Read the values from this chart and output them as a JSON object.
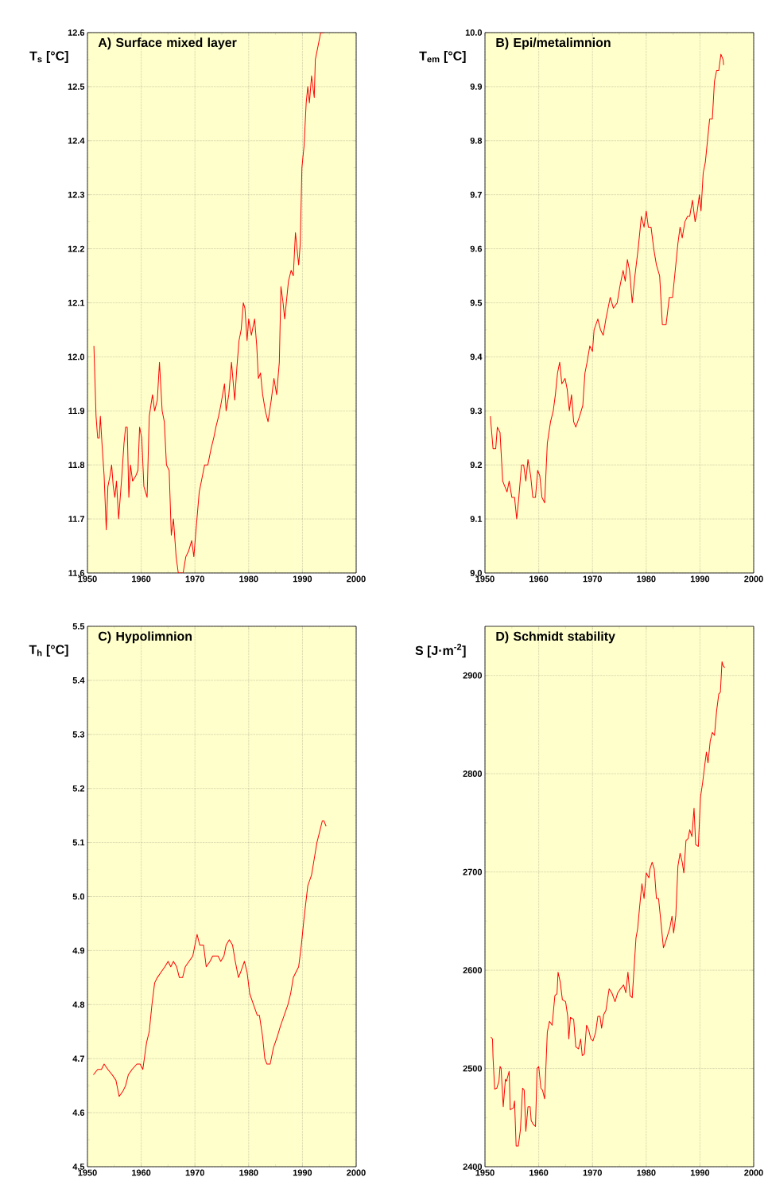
{
  "chart_data": [
    {
      "type": "line",
      "title": "A) Surface mixed layer",
      "ylabel": "T$_{s}$ [°C]",
      "grid": true,
      "xlim": [
        1950,
        2000
      ],
      "ylim": [
        11.6,
        12.6
      ],
      "xticks": [
        1950,
        1960,
        1970,
        1980,
        1990,
        2000
      ],
      "yticks": [
        11.6,
        11.7,
        11.8,
        11.9,
        {
          "value": 12.0,
          "label": "12.0"
        },
        12.1,
        12.2,
        12.3,
        12.4,
        12.5,
        12.6
      ],
      "x": [
        1951.2,
        1951.6,
        1951.9,
        1952.2,
        1952.4,
        1952.7,
        1953.1,
        1953.5,
        1953.8,
        1954.2,
        1954.5,
        1954.8,
        1955.1,
        1955.4,
        1955.8,
        1956.4,
        1956.8,
        1957.1,
        1957.4,
        1957.7,
        1958.0,
        1958.4,
        1959.0,
        1959.4,
        1959.7,
        1960.1,
        1960.5,
        1961.1,
        1961.5,
        1962.1,
        1962.5,
        1963.0,
        1963.4,
        1963.9,
        1964.3,
        1964.7,
        1965.2,
        1965.6,
        1966.0,
        1966.5,
        1966.9,
        1967.3,
        1967.8,
        1968.3,
        1968.8,
        1969.4,
        1969.8,
        1970.2,
        1970.8,
        1971.4,
        1971.8,
        1972.4,
        1973.0,
        1973.5,
        1973.9,
        1974.4,
        1974.8,
        1975.5,
        1975.8,
        1976.3,
        1976.8,
        1977.4,
        1977.8,
        1978.2,
        1978.6,
        1979.0,
        1979.3,
        1979.7,
        1980.0,
        1980.5,
        1981.1,
        1981.5,
        1981.8,
        1982.2,
        1982.6,
        1983.1,
        1983.6,
        1984.2,
        1984.7,
        1985.2,
        1985.7,
        1986.0,
        1986.4,
        1986.7,
        1987.4,
        1987.9,
        1988.3,
        1988.7,
        1989.3,
        1989.6,
        1989.9,
        1990.3,
        1990.7,
        1991.0,
        1991.3,
        1991.7,
        1992.2,
        1992.4,
        1993.0,
        1993.4,
        1994.0
      ],
      "series": [
        {
          "color": "#ff0000",
          "values": [
            12.02,
            11.89,
            11.85,
            11.85,
            11.89,
            11.84,
            11.78,
            11.68,
            11.76,
            11.78,
            11.8,
            11.76,
            11.74,
            11.77,
            11.7,
            11.78,
            11.84,
            11.87,
            11.87,
            11.74,
            11.8,
            11.77,
            11.78,
            11.79,
            11.87,
            11.85,
            11.76,
            11.74,
            11.89,
            11.93,
            11.9,
            11.92,
            11.99,
            11.9,
            11.88,
            11.8,
            11.79,
            11.67,
            11.7,
            11.63,
            11.6,
            11.6,
            11.6,
            11.63,
            11.64,
            11.66,
            11.63,
            11.68,
            11.75,
            11.78,
            11.8,
            11.8,
            11.83,
            11.85,
            11.87,
            11.89,
            11.91,
            11.95,
            11.9,
            11.93,
            11.99,
            11.92,
            11.98,
            12.03,
            12.05,
            12.1,
            12.09,
            12.03,
            12.07,
            12.04,
            12.07,
            12.02,
            11.96,
            11.97,
            11.93,
            11.9,
            11.88,
            11.92,
            11.96,
            11.93,
            11.99,
            12.13,
            12.1,
            12.07,
            12.14,
            12.16,
            12.15,
            12.23,
            12.17,
            12.21,
            12.35,
            12.39,
            12.47,
            12.5,
            12.47,
            12.52,
            12.48,
            12.55,
            12.58,
            12.6,
            12.6
          ]
        }
      ]
    },
    {
      "type": "line",
      "title": "B) Epi/metalimnion",
      "ylabel": "T$_{em}$ [°C]",
      "grid": true,
      "xlim": [
        1950,
        2000
      ],
      "ylim": [
        9.0,
        10.0
      ],
      "xticks": [
        1950,
        1960,
        1970,
        1980,
        1990,
        2000
      ],
      "yticks": [
        {
          "value": 9.0,
          "label": "9.0"
        },
        9.1,
        9.2,
        9.3,
        9.4,
        9.5,
        9.6,
        9.7,
        9.8,
        9.9,
        {
          "value": 10.0,
          "label": "10.0"
        }
      ],
      "x": [
        1951.0,
        1951.5,
        1952.0,
        1952.3,
        1952.8,
        1953.3,
        1953.7,
        1954.1,
        1954.5,
        1955.0,
        1955.5,
        1955.9,
        1956.3,
        1956.8,
        1957.2,
        1957.6,
        1958.0,
        1958.5,
        1958.9,
        1959.4,
        1959.8,
        1960.2,
        1960.6,
        1961.1,
        1961.6,
        1962.2,
        1962.7,
        1963.1,
        1963.5,
        1963.9,
        1964.3,
        1964.9,
        1965.3,
        1965.7,
        1966.1,
        1966.5,
        1966.9,
        1967.6,
        1968.2,
        1968.6,
        1969.0,
        1969.5,
        1970.0,
        1970.3,
        1971.0,
        1971.5,
        1972.0,
        1972.5,
        1972.9,
        1973.3,
        1973.9,
        1974.6,
        1975.1,
        1975.7,
        1976.1,
        1976.5,
        1976.9,
        1977.4,
        1977.9,
        1978.5,
        1979.1,
        1979.6,
        1980.0,
        1980.4,
        1980.9,
        1981.4,
        1981.9,
        1982.5,
        1983.0,
        1983.7,
        1984.3,
        1984.9,
        1985.5,
        1985.9,
        1986.3,
        1986.7,
        1987.2,
        1987.7,
        1988.1,
        1988.6,
        1989.1,
        1989.5,
        1989.9,
        1990.2,
        1990.6,
        1991.0,
        1991.4,
        1991.8,
        1992.3,
        1992.7,
        1993.1,
        1993.5,
        1993.9,
        1994.3,
        1994.4
      ],
      "series": [
        {
          "color": "#ff0000",
          "values": [
            9.29,
            9.23,
            9.23,
            9.27,
            9.26,
            9.17,
            9.16,
            9.15,
            9.17,
            9.14,
            9.14,
            9.1,
            9.14,
            9.2,
            9.2,
            9.17,
            9.21,
            9.18,
            9.14,
            9.14,
            9.19,
            9.18,
            9.14,
            9.13,
            9.24,
            9.28,
            9.3,
            9.33,
            9.37,
            9.39,
            9.35,
            9.36,
            9.34,
            9.3,
            9.33,
            9.28,
            9.27,
            9.29,
            9.31,
            9.37,
            9.39,
            9.42,
            9.41,
            9.45,
            9.47,
            9.45,
            9.44,
            9.47,
            9.49,
            9.51,
            9.49,
            9.5,
            9.53,
            9.56,
            9.54,
            9.58,
            9.56,
            9.5,
            9.55,
            9.6,
            9.66,
            9.64,
            9.67,
            9.64,
            9.64,
            9.6,
            9.57,
            9.55,
            9.46,
            9.46,
            9.51,
            9.51,
            9.57,
            9.61,
            9.64,
            9.62,
            9.65,
            9.66,
            9.66,
            9.69,
            9.65,
            9.67,
            9.7,
            9.67,
            9.74,
            9.76,
            9.8,
            9.84,
            9.84,
            9.91,
            9.93,
            9.93,
            9.96,
            9.95,
            9.94
          ]
        }
      ]
    },
    {
      "type": "line",
      "title": "C) Hypolimnion",
      "ylabel": "T$_{h}$ [°C]",
      "grid": true,
      "xlim": [
        1950,
        2000
      ],
      "ylim": [
        4.5,
        5.5
      ],
      "xticks": [
        1950,
        1960,
        1970,
        1980,
        1990,
        2000
      ],
      "yticks": [
        4.5,
        4.6,
        4.7,
        4.8,
        4.9,
        {
          "value": 5.0,
          "label": "5.0"
        },
        5.1,
        5.2,
        5.3,
        5.4,
        5.5
      ],
      "x": [
        1951.1,
        1951.9,
        1952.6,
        1953.1,
        1953.8,
        1954.6,
        1955.3,
        1955.9,
        1956.6,
        1957.1,
        1957.6,
        1958.3,
        1959.2,
        1959.8,
        1960.3,
        1961.0,
        1961.5,
        1962.0,
        1962.5,
        1963.0,
        1963.7,
        1964.4,
        1965.0,
        1965.5,
        1966.0,
        1966.6,
        1967.1,
        1967.7,
        1968.2,
        1968.9,
        1969.6,
        1970.0,
        1970.4,
        1970.9,
        1971.6,
        1972.1,
        1972.8,
        1973.3,
        1973.8,
        1974.3,
        1974.8,
        1975.4,
        1975.8,
        1976.4,
        1977.0,
        1977.5,
        1978.1,
        1978.5,
        1979.2,
        1979.7,
        1980.2,
        1980.9,
        1981.6,
        1982.0,
        1982.6,
        1983.0,
        1983.4,
        1984.0,
        1984.6,
        1985.3,
        1985.9,
        1986.6,
        1987.3,
        1987.8,
        1988.3,
        1988.8,
        1989.3,
        1989.8,
        1990.3,
        1991.0,
        1991.7,
        1992.2,
        1992.7,
        1993.2,
        1993.7,
        1994.0,
        1994.4
      ],
      "series": [
        {
          "color": "#ff0000",
          "values": [
            4.67,
            4.68,
            4.68,
            4.69,
            4.68,
            4.67,
            4.66,
            4.63,
            4.64,
            4.65,
            4.67,
            4.68,
            4.69,
            4.69,
            4.68,
            4.73,
            4.75,
            4.8,
            4.84,
            4.85,
            4.86,
            4.87,
            4.88,
            4.87,
            4.88,
            4.87,
            4.85,
            4.85,
            4.87,
            4.88,
            4.89,
            4.91,
            4.93,
            4.91,
            4.91,
            4.87,
            4.88,
            4.89,
            4.89,
            4.89,
            4.88,
            4.89,
            4.91,
            4.92,
            4.91,
            4.88,
            4.85,
            4.86,
            4.88,
            4.86,
            4.82,
            4.8,
            4.78,
            4.78,
            4.74,
            4.7,
            4.69,
            4.69,
            4.72,
            4.74,
            4.76,
            4.78,
            4.8,
            4.82,
            4.85,
            4.86,
            4.87,
            4.91,
            4.96,
            5.02,
            5.04,
            5.07,
            5.1,
            5.12,
            5.14,
            5.14,
            5.13
          ]
        }
      ]
    },
    {
      "type": "line",
      "title": "D) Schmidt stability",
      "ylabel": "S [J·m$^{-2}$]",
      "grid": true,
      "xlim": [
        1950,
        2000
      ],
      "ylim": [
        2400,
        2950
      ],
      "xticks": [
        1950,
        1960,
        1970,
        1980,
        1990,
        2000
      ],
      "yticks": [
        2400,
        2500,
        2600,
        2700,
        2800,
        2900
      ],
      "x": [
        1951.1,
        1951.4,
        1951.5,
        1951.8,
        1952.2,
        1952.6,
        1952.8,
        1953.0,
        1953.4,
        1953.8,
        1954.0,
        1954.5,
        1954.7,
        1955.3,
        1955.5,
        1955.8,
        1956.2,
        1956.6,
        1957.0,
        1957.3,
        1957.6,
        1958.0,
        1958.4,
        1958.6,
        1959.0,
        1959.4,
        1959.7,
        1960.0,
        1960.4,
        1960.7,
        1961.1,
        1961.6,
        1962.0,
        1962.5,
        1963.0,
        1963.4,
        1963.6,
        1964.0,
        1964.4,
        1965.0,
        1965.4,
        1965.6,
        1965.9,
        1966.5,
        1966.9,
        1967.4,
        1967.8,
        1968.1,
        1968.5,
        1968.9,
        1969.3,
        1969.7,
        1970.1,
        1970.6,
        1971.0,
        1971.4,
        1971.7,
        1972.1,
        1972.5,
        1973.1,
        1973.6,
        1974.2,
        1974.7,
        1975.2,
        1975.8,
        1976.2,
        1976.6,
        1977.0,
        1977.4,
        1977.8,
        1978.1,
        1978.4,
        1978.8,
        1979.2,
        1979.6,
        1980.0,
        1980.5,
        1980.7,
        1981.1,
        1981.5,
        1981.9,
        1982.3,
        1982.7,
        1983.2,
        1983.5,
        1984.0,
        1984.4,
        1984.8,
        1985.1,
        1985.5,
        1985.9,
        1986.3,
        1986.7,
        1987.0,
        1987.4,
        1987.8,
        1988.1,
        1988.5,
        1988.9,
        1989.2,
        1989.7,
        1990.1,
        1990.5,
        1990.9,
        1991.2,
        1991.5,
        1991.9,
        1992.3,
        1992.7,
        1993.1,
        1993.5,
        1993.8,
        1994.1,
        1994.3,
        1994.6
      ],
      "series": [
        {
          "color": "#ff0000",
          "values": [
            2532,
            2530,
            2511,
            2479,
            2480,
            2487,
            2502,
            2500,
            2461,
            2489,
            2487,
            2497,
            2458,
            2460,
            2467,
            2421,
            2421,
            2438,
            2480,
            2478,
            2436,
            2461,
            2461,
            2447,
            2443,
            2441,
            2500,
            2502,
            2480,
            2478,
            2469,
            2537,
            2548,
            2544,
            2574,
            2576,
            2598,
            2588,
            2570,
            2568,
            2553,
            2530,
            2552,
            2550,
            2522,
            2520,
            2530,
            2513,
            2515,
            2544,
            2539,
            2530,
            2528,
            2537,
            2553,
            2553,
            2541,
            2555,
            2559,
            2581,
            2577,
            2568,
            2577,
            2581,
            2585,
            2577,
            2598,
            2574,
            2572,
            2607,
            2633,
            2642,
            2666,
            2688,
            2673,
            2699,
            2694,
            2703,
            2710,
            2703,
            2673,
            2673,
            2651,
            2623,
            2627,
            2636,
            2643,
            2655,
            2638,
            2655,
            2706,
            2719,
            2710,
            2699,
            2732,
            2734,
            2743,
            2736,
            2765,
            2728,
            2726,
            2776,
            2791,
            2809,
            2822,
            2811,
            2833,
            2842,
            2839,
            2864,
            2881,
            2883,
            2914,
            2910,
            2908
          ]
        }
      ]
    }
  ]
}
